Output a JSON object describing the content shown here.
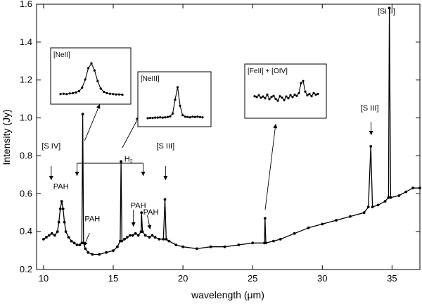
{
  "chart_data": {
    "type": "line",
    "title": "",
    "xlabel": "wavelength (μm)",
    "ylabel": "Intensity (Jy)",
    "xlim": [
      9.5,
      37
    ],
    "ylim": [
      0.2,
      1.6
    ],
    "xticks": [
      10,
      15,
      20,
      25,
      30,
      35
    ],
    "yticks": [
      0.2,
      0.4,
      0.6,
      0.8,
      1.0,
      1.2,
      1.4,
      1.6
    ],
    "xtick_labels": [
      "10",
      "15",
      "20",
      "25",
      "30",
      "35"
    ],
    "ytick_labels": [
      "0.2",
      "0.4",
      "0.6",
      "0.8",
      "1.0",
      "1.2",
      "1.4",
      "1.6"
    ],
    "grid": false,
    "series": [
      {
        "marker": "dot",
        "color": "#000000",
        "x": [
          10.0,
          10.2,
          10.4,
          10.6,
          10.8,
          11.0,
          11.1,
          11.2,
          11.3,
          11.4,
          11.5,
          11.6,
          11.8,
          12.0,
          12.2,
          12.4,
          12.6,
          12.75,
          12.81,
          12.87,
          13.0,
          13.2,
          13.5,
          14.0,
          14.5,
          15.0,
          15.3,
          15.5,
          15.56,
          15.62,
          15.8,
          16.0,
          16.2,
          16.4,
          16.6,
          16.8,
          17.0,
          17.03,
          17.1,
          17.3,
          17.6,
          17.8,
          18.0,
          18.3,
          18.6,
          18.71,
          18.8,
          19.0,
          19.5,
          20.0,
          21.0,
          22.0,
          23.0,
          24.0,
          25.0,
          25.85,
          25.89,
          25.95,
          26.5,
          27.0,
          28.0,
          29.0,
          30.0,
          31.0,
          32.0,
          33.0,
          33.3,
          33.48,
          33.6,
          34.0,
          34.5,
          34.75,
          34.81,
          34.9,
          35.5,
          36.0,
          36.5,
          37.0
        ],
        "y": [
          0.36,
          0.37,
          0.38,
          0.39,
          0.38,
          0.4,
          0.45,
          0.52,
          0.56,
          0.52,
          0.45,
          0.4,
          0.37,
          0.35,
          0.34,
          0.33,
          0.33,
          0.34,
          1.02,
          0.34,
          0.31,
          0.29,
          0.28,
          0.28,
          0.29,
          0.3,
          0.32,
          0.35,
          0.77,
          0.35,
          0.36,
          0.37,
          0.38,
          0.38,
          0.39,
          0.38,
          0.4,
          0.5,
          0.4,
          0.38,
          0.37,
          0.38,
          0.37,
          0.36,
          0.36,
          0.57,
          0.36,
          0.35,
          0.33,
          0.32,
          0.31,
          0.32,
          0.32,
          0.33,
          0.34,
          0.34,
          0.47,
          0.34,
          0.35,
          0.36,
          0.39,
          0.42,
          0.44,
          0.46,
          0.48,
          0.5,
          0.53,
          0.85,
          0.53,
          0.54,
          0.56,
          0.58,
          1.58,
          0.58,
          0.59,
          0.61,
          0.63,
          0.63
        ]
      }
    ],
    "annotations": [
      {
        "text": "[S IV]",
        "x": 10.55,
        "y": 0.838
      },
      {
        "text": "PAH",
        "x": 11.25,
        "y": 0.625
      },
      {
        "text": "PAH",
        "x": 13.5,
        "y": 0.455
      },
      {
        "text": "H₂",
        "x": 16.1,
        "y": 0.77
      },
      {
        "text": "[S III]",
        "x": 18.75,
        "y": 0.838
      },
      {
        "text": "PAH",
        "x": 16.8,
        "y": 0.525
      },
      {
        "text": "PAH",
        "x": 17.7,
        "y": 0.49
      },
      {
        "text": "[S III]",
        "x": 33.4,
        "y": 1.04
      },
      {
        "text": "[Si II]",
        "x": 34.6,
        "y": 1.55
      }
    ],
    "insets": [
      {
        "label": "[NeII]",
        "x": [
          0,
          1,
          2,
          3,
          4,
          5,
          6,
          7,
          8,
          9,
          10,
          11,
          12,
          13,
          14,
          15,
          16,
          17,
          18,
          19,
          20
        ],
        "y": [
          0.05,
          0.06,
          0.05,
          0.07,
          0.08,
          0.1,
          0.14,
          0.25,
          0.5,
          0.85,
          1.0,
          0.78,
          0.45,
          0.22,
          0.12,
          0.08,
          0.06,
          0.05,
          0.04,
          0.04,
          0.03
        ]
      },
      {
        "label": "[NeIII]",
        "x": [
          0,
          1,
          2,
          3,
          4,
          5,
          6,
          7,
          8,
          9,
          10,
          11,
          12,
          13,
          14,
          15,
          16,
          17,
          18,
          19,
          20,
          21,
          22
        ],
        "y": [
          0.0,
          0.01,
          0.01,
          0.02,
          0.02,
          0.03,
          0.02,
          0.03,
          0.04,
          0.06,
          0.15,
          0.6,
          1.0,
          0.4,
          0.1,
          0.05,
          0.04,
          0.03,
          0.05,
          0.04,
          0.05,
          0.04,
          0.03
        ]
      },
      {
        "label": "[FeII] + [OIV]",
        "x": [
          0,
          1,
          2,
          3,
          4,
          5,
          6,
          7,
          8,
          9,
          10,
          11,
          12,
          13,
          14,
          15,
          16,
          17,
          18,
          19,
          20,
          21,
          22,
          23,
          24,
          25,
          26,
          27,
          28,
          29,
          30
        ],
        "y": [
          0.45,
          0.42,
          0.48,
          0.4,
          0.44,
          0.38,
          0.5,
          0.35,
          0.42,
          0.46,
          0.36,
          0.3,
          0.45,
          0.4,
          0.32,
          0.44,
          0.38,
          0.48,
          0.42,
          0.5,
          0.46,
          0.55,
          0.88,
          0.95,
          0.6,
          0.48,
          0.52,
          0.45,
          0.55,
          0.5,
          0.52
        ]
      }
    ]
  }
}
